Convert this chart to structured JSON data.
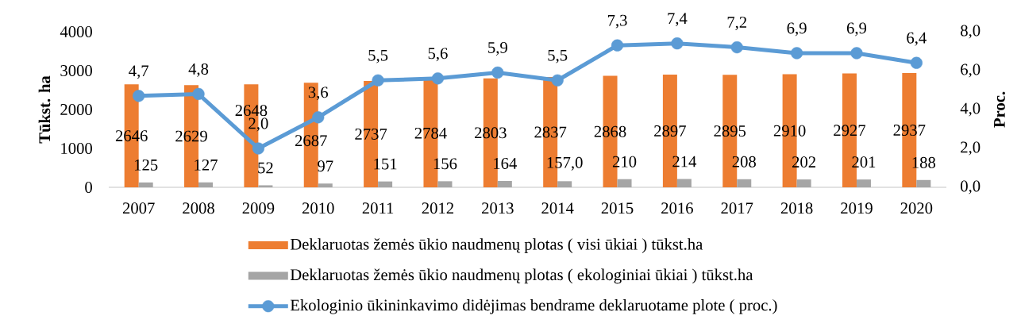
{
  "chart_data": {
    "type": "bar",
    "categories": [
      "2007",
      "2008",
      "2009",
      "2010",
      "2011",
      "2012",
      "2013",
      "2014",
      "2015",
      "2016",
      "2017",
      "2018",
      "2019",
      "2020"
    ],
    "ylabel": "Tūkst. ha",
    "y2label": "Proc.",
    "ylim": [
      0,
      4000
    ],
    "yticks": [
      0,
      1000,
      2000,
      3000,
      4000
    ],
    "y2lim": [
      0,
      8
    ],
    "y2ticks": [
      {
        "value": 0,
        "label": "0,0"
      },
      {
        "value": 2,
        "label": "2,0"
      },
      {
        "value": 4,
        "label": "4,0"
      },
      {
        "value": 6,
        "label": "6,0"
      },
      {
        "value": 8,
        "label": "8,0"
      }
    ],
    "series": [
      {
        "name": "Deklaruotas žemės ūkio naudmenų plotas ( visi ūkiai ) tūkst.ha",
        "color": "#ed7d31",
        "values": [
          2646,
          2629,
          2648,
          2687,
          2737,
          2784,
          2803,
          2837,
          2868,
          2897,
          2895,
          2910,
          2927,
          2937
        ],
        "value_labels": [
          "2646",
          "2629",
          "2648",
          "2687",
          "2737",
          "2784",
          "2803",
          "2837",
          "2868",
          "2897",
          "2895",
          "2910",
          "2927",
          "2937"
        ]
      },
      {
        "name": "Deklaruotas žemės ūkio naudmenų plotas ( ekologiniai ūkiai ) tūkst.ha",
        "color": "#a5a5a5",
        "values": [
          125,
          127,
          52,
          97,
          151,
          156,
          164,
          157,
          210,
          214,
          208,
          202,
          201,
          188
        ],
        "value_labels": [
          "125",
          "127",
          "52",
          "97",
          "151",
          "156",
          "164",
          "157,0",
          "210",
          "214",
          "208",
          "202",
          "201",
          "188"
        ]
      },
      {
        "name": "Ekologinio ūkininkavimo didėjimas bendrame deklaruotame plote ( proc.)",
        "type": "line",
        "axis": "y2",
        "color": "#5b9bd5",
        "marker": "circle",
        "line_style": "solid",
        "values": [
          4.7,
          4.8,
          2.0,
          3.6,
          5.5,
          5.6,
          5.9,
          5.5,
          7.3,
          7.4,
          7.2,
          6.9,
          6.9,
          6.4
        ],
        "value_labels": [
          "4,7",
          "4,8",
          "2,0",
          "3,6",
          "5,5",
          "5,6",
          "5,9",
          "5,5",
          "7,3",
          "7,4",
          "7,2",
          "6,9",
          "6,9",
          "6,4"
        ]
      }
    ],
    "legend": "bottom",
    "grid": false
  }
}
